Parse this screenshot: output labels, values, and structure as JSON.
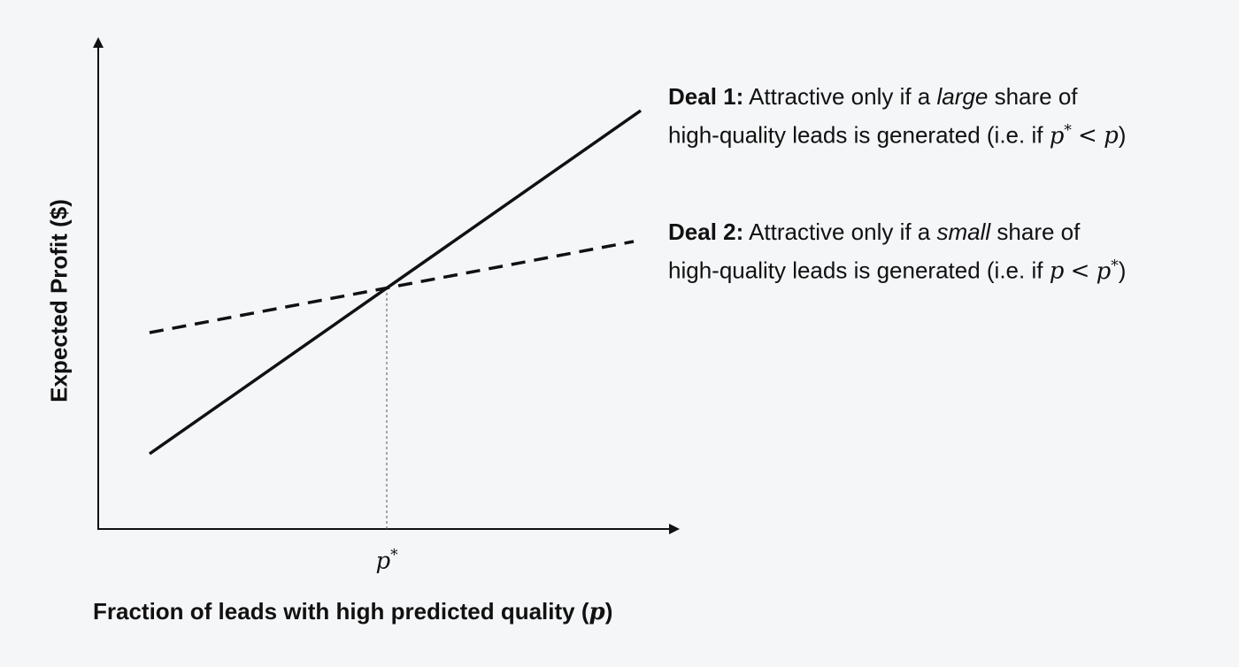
{
  "axes": {
    "x_label": "Fraction of leads with high predicted quality (",
    "x_label_var": "p",
    "x_label_end": ")",
    "y_label": "Expected Profit ($)",
    "x_tick_label": "p",
    "x_tick_sup": "*"
  },
  "deal1": {
    "title": "Deal 1:",
    "pre": "Attractive only if a",
    "emph": "large",
    "post": "share of",
    "line2": "high-quality leads is generated (i.e. if",
    "math_a": "p",
    "sup": "*",
    "op": "<",
    "math_b": "p",
    "close": ")",
    "line_style": "solid"
  },
  "deal2": {
    "title": "Deal 2:",
    "pre": "Attractive only if a",
    "emph": "small",
    "post": "share of",
    "line2": "high-quality leads is generated (i.e. if",
    "math_a": "p",
    "op": "<",
    "math_b": "p",
    "sup": "*",
    "close": ")",
    "line_style": "dashed"
  },
  "colors": {
    "background": "#f5f6f8",
    "ink": "#111111",
    "guide": "#555555"
  }
}
